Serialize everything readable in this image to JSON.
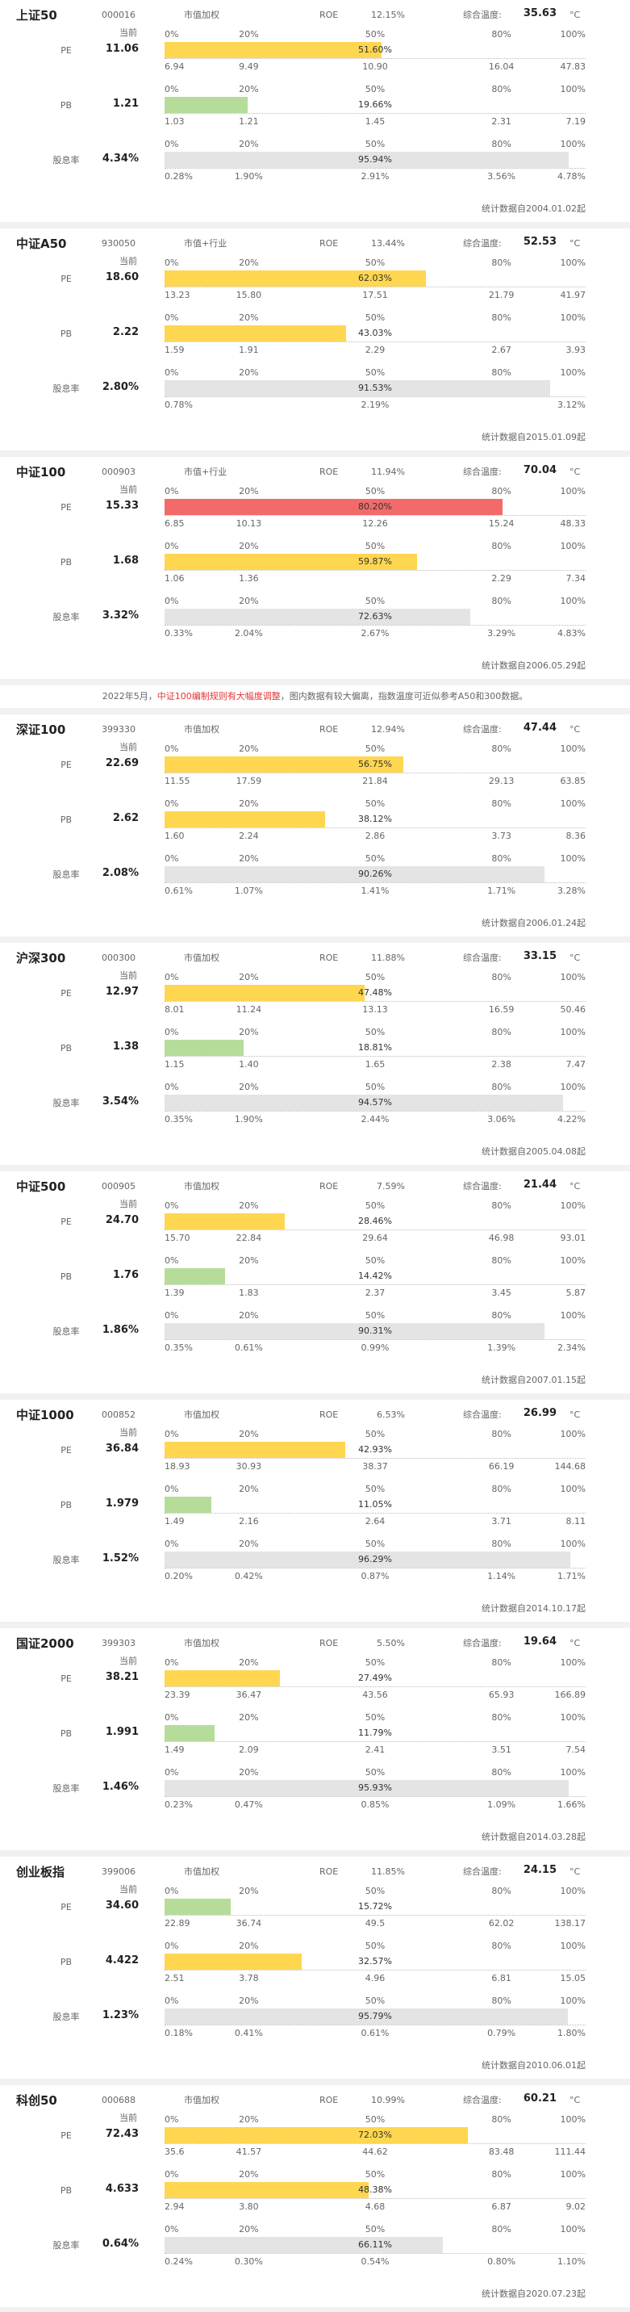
{
  "labels": {
    "current": "当前",
    "roe": "ROE",
    "temperature": "综合温度:",
    "unit": "°C",
    "scale": [
      "0%",
      "20%",
      "50%",
      "80%",
      "100%"
    ]
  },
  "note": {
    "before": "2022年5月，",
    "highlight": "中证100编制规则有大幅度调整",
    "after": "，图内数据有较大偏离，指数温度可近似参考A50和300数据。"
  },
  "cards": [
    {
      "name": "上证50",
      "code": "000016",
      "weighting": "市值加权",
      "roe": "12.15%",
      "temperature": "35.63",
      "footnote": "统计数据自2004.01.02起",
      "rows": [
        {
          "metric": "PE",
          "current": "11.06",
          "percentile": {
            "value": 51.6,
            "label": "51.60%"
          },
          "color": "#ffd64f",
          "quantiles": [
            "6.94",
            "9.49",
            "10.90",
            "16.04",
            "47.83"
          ]
        },
        {
          "metric": "PB",
          "current": "1.21",
          "percentile": {
            "value": 19.66,
            "label": "19.66%"
          },
          "color": "#b6dc9a",
          "quantiles": [
            "1.03",
            "1.21",
            "1.45",
            "2.31",
            "7.19"
          ]
        },
        {
          "metric": "股息率",
          "current": "4.34%",
          "percentile": {
            "value": 95.94,
            "label": "95.94%"
          },
          "color": "#e4e4e4",
          "quantiles": [
            "0.28%",
            "1.90%",
            "2.91%",
            "3.56%",
            "4.78%"
          ]
        }
      ]
    },
    {
      "name": "中证A50",
      "code": "930050",
      "weighting": "市值+行业",
      "roe": "13.44%",
      "temperature": "52.53",
      "footnote": "统计数据自2015.01.09起",
      "rows": [
        {
          "metric": "PE",
          "current": "18.60",
          "percentile": {
            "value": 62.03,
            "label": "62.03%"
          },
          "color": "#ffd64f",
          "quantiles": [
            "13.23",
            "15.80",
            "17.51",
            "21.79",
            "41.97"
          ]
        },
        {
          "metric": "PB",
          "current": "2.22",
          "percentile": {
            "value": 43.03,
            "label": "43.03%"
          },
          "color": "#ffd64f",
          "quantiles": [
            "1.59",
            "1.91",
            "2.29",
            "2.67",
            "3.93"
          ]
        },
        {
          "metric": "股息率",
          "current": "2.80%",
          "percentile": {
            "value": 91.53,
            "label": "91.53%"
          },
          "color": "#e4e4e4",
          "quantiles": [
            "0.78%",
            null,
            "2.19%",
            null,
            "3.12%"
          ]
        }
      ]
    },
    {
      "name": "中证100",
      "code": "000903",
      "weighting": "市值+行业",
      "roe": "11.94%",
      "temperature": "70.04",
      "footnote": "统计数据自2006.05.29起",
      "rows": [
        {
          "metric": "PE",
          "current": "15.33",
          "percentile": {
            "value": 80.2,
            "label": "80.20%"
          },
          "color": "#f36a6a",
          "quantiles": [
            "6.85",
            "10.13",
            "12.26",
            "15.24",
            "48.33"
          ]
        },
        {
          "metric": "PB",
          "current": "1.68",
          "percentile": {
            "value": 59.87,
            "label": "59.87%"
          },
          "color": "#ffd64f",
          "quantiles": [
            "1.06",
            "1.36",
            null,
            "2.29",
            "7.34"
          ]
        },
        {
          "metric": "股息率",
          "current": "3.32%",
          "percentile": {
            "value": 72.63,
            "label": "72.63%"
          },
          "color": "#e4e4e4",
          "quantiles": [
            "0.33%",
            "2.04%",
            "2.67%",
            "3.29%",
            "4.83%"
          ]
        }
      ]
    },
    {
      "name": "深证100",
      "code": "399330",
      "weighting": "市值加权",
      "roe": "12.94%",
      "temperature": "47.44",
      "footnote": "统计数据自2006.01.24起",
      "rows": [
        {
          "metric": "PE",
          "current": "22.69",
          "percentile": {
            "value": 56.75,
            "label": "56.75%"
          },
          "color": "#ffd64f",
          "quantiles": [
            "11.55",
            "17.59",
            "21.84",
            "29.13",
            "63.85"
          ]
        },
        {
          "metric": "PB",
          "current": "2.62",
          "percentile": {
            "value": 38.12,
            "label": "38.12%"
          },
          "color": "#ffd64f",
          "quantiles": [
            "1.60",
            "2.24",
            "2.86",
            "3.73",
            "8.36"
          ]
        },
        {
          "metric": "股息率",
          "current": "2.08%",
          "percentile": {
            "value": 90.26,
            "label": "90.26%"
          },
          "color": "#e4e4e4",
          "quantiles": [
            "0.61%",
            "1.07%",
            "1.41%",
            "1.71%",
            "3.28%"
          ]
        }
      ]
    },
    {
      "name": "沪深300",
      "code": "000300",
      "weighting": "市值加权",
      "roe": "11.88%",
      "temperature": "33.15",
      "footnote": "统计数据自2005.04.08起",
      "rows": [
        {
          "metric": "PE",
          "current": "12.97",
          "percentile": {
            "value": 47.48,
            "label": "47.48%"
          },
          "color": "#ffd64f",
          "quantiles": [
            "8.01",
            "11.24",
            "13.13",
            "16.59",
            "50.46"
          ]
        },
        {
          "metric": "PB",
          "current": "1.38",
          "percentile": {
            "value": 18.81,
            "label": "18.81%"
          },
          "color": "#b6dc9a",
          "quantiles": [
            "1.15",
            "1.40",
            "1.65",
            "2.38",
            "7.47"
          ]
        },
        {
          "metric": "股息率",
          "current": "3.54%",
          "percentile": {
            "value": 94.57,
            "label": "94.57%"
          },
          "color": "#e4e4e4",
          "quantiles": [
            "0.35%",
            "1.90%",
            "2.44%",
            "3.06%",
            "4.22%"
          ]
        }
      ]
    },
    {
      "name": "中证500",
      "code": "000905",
      "weighting": "市值加权",
      "roe": "7.59%",
      "temperature": "21.44",
      "footnote": "统计数据自2007.01.15起",
      "rows": [
        {
          "metric": "PE",
          "current": "24.70",
          "percentile": {
            "value": 28.46,
            "label": "28.46%"
          },
          "color": "#ffd64f",
          "quantiles": [
            "15.70",
            "22.84",
            "29.64",
            "46.98",
            "93.01"
          ]
        },
        {
          "metric": "PB",
          "current": "1.76",
          "percentile": {
            "value": 14.42,
            "label": "14.42%"
          },
          "color": "#b6dc9a",
          "quantiles": [
            "1.39",
            "1.83",
            "2.37",
            "3.45",
            "5.87"
          ]
        },
        {
          "metric": "股息率",
          "current": "1.86%",
          "percentile": {
            "value": 90.31,
            "label": "90.31%"
          },
          "color": "#e4e4e4",
          "quantiles": [
            "0.35%",
            "0.61%",
            "0.99%",
            "1.39%",
            "2.34%"
          ]
        }
      ]
    },
    {
      "name": "中证1000",
      "code": "000852",
      "weighting": "市值加权",
      "roe": "6.53%",
      "temperature": "26.99",
      "footnote": "统计数据自2014.10.17起",
      "rows": [
        {
          "metric": "PE",
          "current": "36.84",
          "percentile": {
            "value": 42.93,
            "label": "42.93%"
          },
          "color": "#ffd64f",
          "quantiles": [
            "18.93",
            "30.93",
            "38.37",
            "66.19",
            "144.68"
          ]
        },
        {
          "metric": "PB",
          "current": "1.979",
          "percentile": {
            "value": 11.05,
            "label": "11.05%"
          },
          "color": "#b6dc9a",
          "quantiles": [
            "1.49",
            "2.16",
            "2.64",
            "3.71",
            "8.11"
          ]
        },
        {
          "metric": "股息率",
          "current": "1.52%",
          "percentile": {
            "value": 96.29,
            "label": "96.29%"
          },
          "color": "#e4e4e4",
          "quantiles": [
            "0.20%",
            "0.42%",
            "0.87%",
            "1.14%",
            "1.71%"
          ]
        }
      ]
    },
    {
      "name": "国证2000",
      "code": "399303",
      "weighting": "市值加权",
      "roe": "5.50%",
      "temperature": "19.64",
      "footnote": "统计数据自2014.03.28起",
      "rows": [
        {
          "metric": "PE",
          "current": "38.21",
          "percentile": {
            "value": 27.49,
            "label": "27.49%"
          },
          "color": "#ffd64f",
          "quantiles": [
            "23.39",
            "36.47",
            "43.56",
            "65.93",
            "166.89"
          ]
        },
        {
          "metric": "PB",
          "current": "1.991",
          "percentile": {
            "value": 11.79,
            "label": "11.79%"
          },
          "color": "#b6dc9a",
          "quantiles": [
            "1.49",
            "2.09",
            "2.41",
            "3.51",
            "7.54"
          ]
        },
        {
          "metric": "股息率",
          "current": "1.46%",
          "percentile": {
            "value": 95.93,
            "label": "95.93%"
          },
          "color": "#e4e4e4",
          "quantiles": [
            "0.23%",
            "0.47%",
            "0.85%",
            "1.09%",
            "1.66%"
          ]
        }
      ]
    },
    {
      "name": "创业板指",
      "code": "399006",
      "weighting": "市值加权",
      "roe": "11.85%",
      "temperature": "24.15",
      "footnote": "统计数据自2010.06.01起",
      "rows": [
        {
          "metric": "PE",
          "current": "34.60",
          "percentile": {
            "value": 15.72,
            "label": "15.72%"
          },
          "color": "#b6dc9a",
          "quantiles": [
            "22.89",
            "36.74",
            "49.5",
            "62.02",
            "138.17"
          ]
        },
        {
          "metric": "PB",
          "current": "4.422",
          "percentile": {
            "value": 32.57,
            "label": "32.57%"
          },
          "color": "#ffd64f",
          "quantiles": [
            "2.51",
            "3.78",
            "4.96",
            "6.81",
            "15.05"
          ]
        },
        {
          "metric": "股息率",
          "current": "1.23%",
          "percentile": {
            "value": 95.79,
            "label": "95.79%"
          },
          "color": "#e4e4e4",
          "quantiles": [
            "0.18%",
            "0.41%",
            "0.61%",
            "0.79%",
            "1.80%"
          ]
        }
      ]
    },
    {
      "name": "科创50",
      "code": "000688",
      "weighting": "市值加权",
      "roe": "10.99%",
      "temperature": "60.21",
      "footnote": "统计数据自2020.07.23起",
      "rows": [
        {
          "metric": "PE",
          "current": "72.43",
          "percentile": {
            "value": 72.03,
            "label": "72.03%"
          },
          "color": "#ffd64f",
          "quantiles": [
            "35.6",
            "41.57",
            "44.62",
            "83.48",
            "111.44"
          ]
        },
        {
          "metric": "PB",
          "current": "4.633",
          "percentile": {
            "value": 48.38,
            "label": "48.38%"
          },
          "color": "#ffd64f",
          "quantiles": [
            "2.94",
            "3.80",
            "4.68",
            "6.87",
            "9.02"
          ]
        },
        {
          "metric": "股息率",
          "current": "0.64%",
          "percentile": {
            "value": 66.11,
            "label": "66.11%"
          },
          "color": "#e4e4e4",
          "quantiles": [
            "0.24%",
            "0.30%",
            "0.54%",
            "0.80%",
            "1.10%"
          ]
        }
      ]
    }
  ]
}
